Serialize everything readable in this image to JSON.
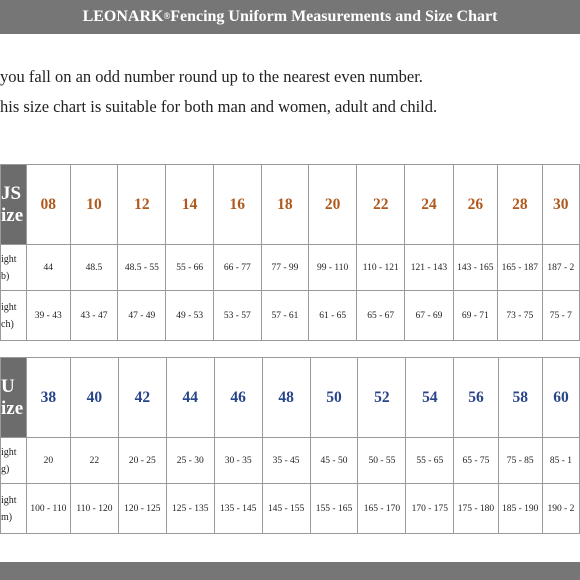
{
  "title": {
    "brand": "LEONARK",
    "reg": "®",
    "text": " Fencing Uniform Measurements and Size Chart"
  },
  "notes": [
    "you fall on an odd number round up to the nearest even number.",
    "his size chart is suitable for both man and women, adult and child."
  ],
  "us_table": {
    "head": [
      "JS",
      "ize"
    ],
    "sizes": [
      "08",
      "10",
      "12",
      "14",
      "16",
      "18",
      "20",
      "22",
      "24",
      "26",
      "28",
      "30"
    ],
    "rows": [
      {
        "label": [
          "ight",
          "b)"
        ],
        "values": [
          "44",
          "48.5",
          "48.5 - 55",
          "55 - 66",
          "66 - 77",
          "77 - 99",
          "99 - 110",
          "110 - 121",
          "121 - 143",
          "143 - 165",
          "165 - 187",
          "187 - 2"
        ]
      },
      {
        "label": [
          "ight",
          "ch)"
        ],
        "values": [
          "39 - 43",
          "43 - 47",
          "47 - 49",
          "49 - 53",
          "53 - 57",
          "57 - 61",
          "61 - 65",
          "65 - 67",
          "67 - 69",
          "69 - 71",
          "73 - 75",
          "75 - 7"
        ]
      }
    ]
  },
  "eu_table": {
    "head": [
      "U",
      "ize"
    ],
    "sizes": [
      "38",
      "40",
      "42",
      "44",
      "46",
      "48",
      "50",
      "52",
      "54",
      "56",
      "58",
      "60"
    ],
    "rows": [
      {
        "label": [
          "ight",
          "g)"
        ],
        "values": [
          "20",
          "22",
          "20 - 25",
          "25 - 30",
          "30 - 35",
          "35 - 45",
          "45 - 50",
          "50 - 55",
          "55 - 65",
          "65 - 75",
          "75 - 85",
          "85 - 1"
        ]
      },
      {
        "label": [
          "ight",
          "m)"
        ],
        "values": [
          "100 - 110",
          "110 - 120",
          "120 - 125",
          "125 - 135",
          "135 - 145",
          "145 - 155",
          "155 - 165",
          "165 - 170",
          "170 - 175",
          "175 - 180",
          "185 - 190",
          "190 - 2"
        ]
      }
    ]
  },
  "colors": {
    "bar": "#767676",
    "header_cell": "#6c6c6c",
    "us_size": "#b0591d",
    "eu_size": "#28448a"
  }
}
